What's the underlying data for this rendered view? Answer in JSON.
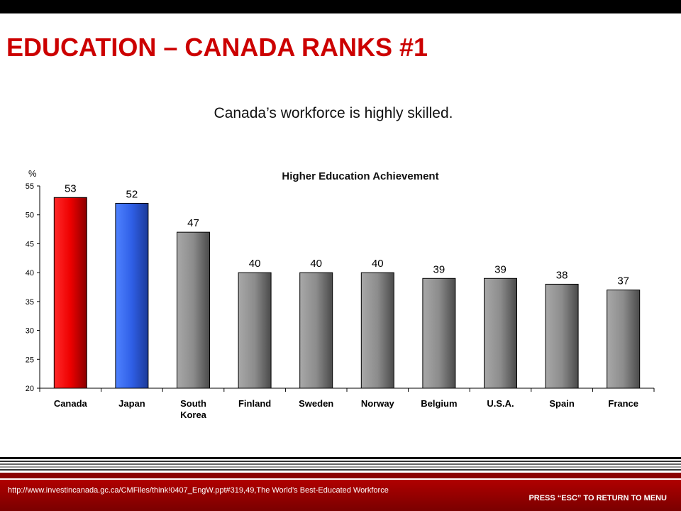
{
  "slide": {
    "title": "EDUCATION – CANADA RANKS #1",
    "subtitle": "Canada’s workforce is highly skilled."
  },
  "footer": {
    "source": "http://www.investincanada.gc.ca/CMFiles/think!0407_EngW.ppt#319,49,The  World’s Best-Educated Workforce",
    "esc_note": "PRESS “ESC” TO RETURN TO MENU"
  },
  "colors": {
    "title": "#cc0000",
    "canada_bar": "#ee0000",
    "japan_bar": "#2f5fe6",
    "other_bars": "#8c8c8c",
    "footer": "#a00000"
  },
  "chart_data": {
    "type": "bar",
    "title": "Higher Education Achievement",
    "ylabel": "%",
    "xlabel": "",
    "categories": [
      "Canada",
      "Japan",
      "South Korea",
      "Finland",
      "Sweden",
      "Norway",
      "Belgium",
      "U.S.A.",
      "Spain",
      "France"
    ],
    "category_lines": [
      [
        "Canada"
      ],
      [
        "Japan"
      ],
      [
        "South",
        "Korea"
      ],
      [
        "Finland"
      ],
      [
        "Sweden"
      ],
      [
        "Norway"
      ],
      [
        "Belgium"
      ],
      [
        "U.S.A."
      ],
      [
        "Spain"
      ],
      [
        "France"
      ]
    ],
    "values": [
      53,
      52,
      47,
      40,
      40,
      40,
      39,
      39,
      38,
      37
    ],
    "data_labels": [
      "53",
      "52",
      "47",
      "40",
      "40",
      "40",
      "39",
      "39",
      "38",
      "37"
    ],
    "ylim": [
      20,
      55
    ],
    "yticks": [
      20,
      25,
      30,
      35,
      40,
      45,
      50,
      55
    ],
    "grid": false,
    "legend": "none"
  }
}
